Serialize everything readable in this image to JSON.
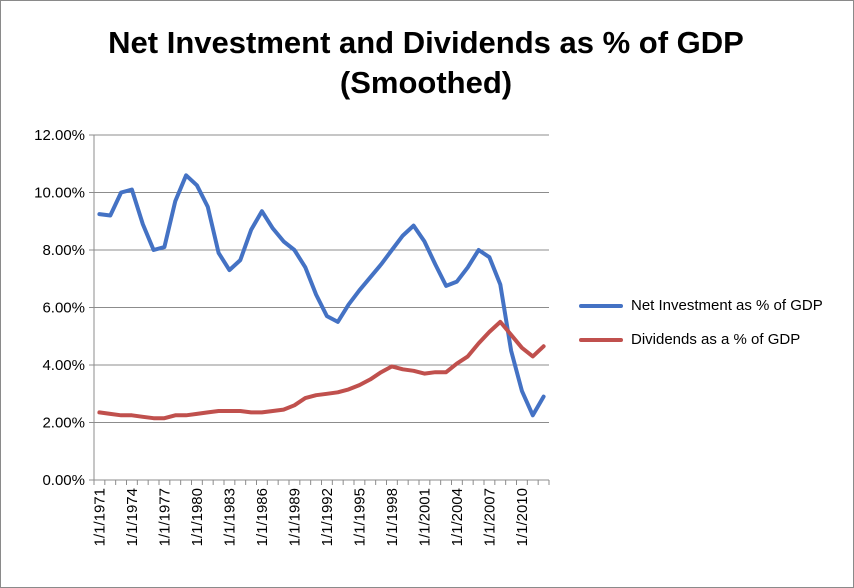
{
  "chart_data": {
    "type": "line",
    "title": "Net Investment and Dividends as % of GDP (Smoothed)",
    "title_lines": [
      "Net Investment and Dividends as % of GDP",
      "(Smoothed)"
    ],
    "xlabel": "",
    "ylabel": "",
    "ylim": [
      0,
      12
    ],
    "y_ticks": [
      "0.00%",
      "2.00%",
      "4.00%",
      "6.00%",
      "8.00%",
      "10.00%",
      "12.00%"
    ],
    "grid": true,
    "legend_position": "right",
    "x_ticks": [
      "1/1/1971",
      "1/1/1974",
      "1/1/1977",
      "1/1/1980",
      "1/1/1983",
      "1/1/1986",
      "1/1/1989",
      "1/1/1992",
      "1/1/1995",
      "1/1/1998",
      "1/1/2001",
      "1/1/2004",
      "1/1/2007",
      "1/1/2010"
    ],
    "x": [
      1971,
      1972,
      1973,
      1974,
      1975,
      1976,
      1977,
      1978,
      1979,
      1980,
      1981,
      1982,
      1983,
      1984,
      1985,
      1986,
      1987,
      1988,
      1989,
      1990,
      1991,
      1992,
      1993,
      1994,
      1995,
      1996,
      1997,
      1998,
      1999,
      2000,
      2001,
      2002,
      2003,
      2004,
      2005,
      2006,
      2007,
      2008,
      2009,
      2010,
      2011,
      2012
    ],
    "series": [
      {
        "name": "Net Investment as % of GDP",
        "color": "#4472C4",
        "values": [
          9.25,
          9.2,
          10.0,
          10.1,
          8.9,
          8.0,
          8.1,
          9.7,
          10.6,
          10.25,
          9.5,
          7.9,
          7.3,
          7.65,
          8.7,
          9.35,
          8.75,
          8.3,
          8.0,
          7.4,
          6.45,
          5.7,
          5.5,
          6.1,
          6.6,
          7.05,
          7.5,
          8.0,
          8.5,
          8.85,
          8.3,
          7.5,
          6.75,
          6.9,
          7.4,
          8.0,
          7.75,
          6.8,
          4.5,
          3.1,
          2.25,
          2.9
        ]
      },
      {
        "name": "Dividends as a % of GDP",
        "color": "#C0504D",
        "values": [
          2.35,
          2.3,
          2.25,
          2.25,
          2.2,
          2.15,
          2.15,
          2.25,
          2.25,
          2.3,
          2.35,
          2.4,
          2.4,
          2.4,
          2.35,
          2.35,
          2.4,
          2.45,
          2.6,
          2.85,
          2.95,
          3.0,
          3.05,
          3.15,
          3.3,
          3.5,
          3.75,
          3.95,
          3.85,
          3.8,
          3.7,
          3.75,
          3.75,
          4.05,
          4.3,
          4.75,
          5.15,
          5.5,
          5.05,
          4.6,
          4.3,
          4.65
        ]
      }
    ]
  }
}
